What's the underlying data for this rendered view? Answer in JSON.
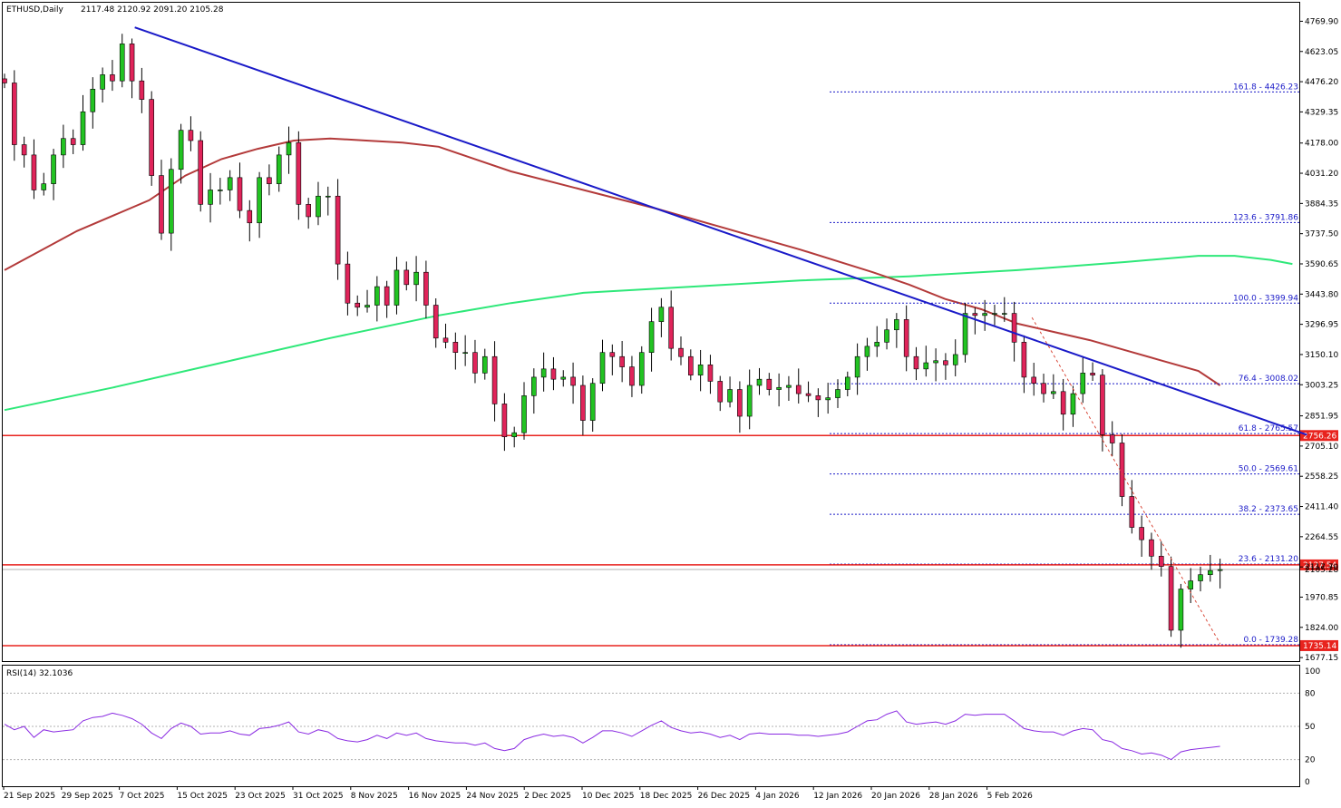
{
  "header": {
    "symbol": "ETHUSD,Daily",
    "ohlc": "2117.48 2120.92 2091.20 2105.28"
  },
  "colors": {
    "bull_candle": "#22c322",
    "bear_candle": "#e0245a",
    "trendline": "#1a1ac8",
    "ma_fast": "#b33a3a",
    "ma_slow": "#2ee879",
    "fib_lines": "#1a1ac8",
    "horizontal_levels": "#e8231e",
    "projection": "#d9493a",
    "rsi": "#8a2be2"
  },
  "chart_data": [
    {
      "type": "candlestick",
      "title": "ETHUSD,Daily",
      "price_axis_ticks": [
        "4769.90",
        "4623.05",
        "4476.20",
        "4329.35",
        "4178.00",
        "4031.20",
        "3884.35",
        "3737.50",
        "3590.65",
        "3443.80",
        "3296.95",
        "3150.10",
        "3003.25",
        "2851.95",
        "2705.10",
        "2558.25",
        "2411.40",
        "2264.55",
        "2117.70",
        "1970.85",
        "1824.00",
        "1677.15"
      ],
      "ylim": [
        1660,
        4860
      ],
      "date_ticks": [
        "21 Sep 2025",
        "29 Sep 2025",
        "7 Oct 2025",
        "15 Oct 2025",
        "23 Oct 2025",
        "31 Oct 2025",
        "8 Nov 2025",
        "16 Nov 2025",
        "24 Nov 2025",
        "2 Dec 2025",
        "10 Dec 2025",
        "18 Dec 2025",
        "26 Dec 2025",
        "4 Jan 2026",
        "12 Jan 2026",
        "20 Jan 2026",
        "28 Jan 2026",
        "5 Feb 2026"
      ],
      "close_series": [
        4470,
        4170,
        4120,
        3950,
        3980,
        4120,
        4200,
        4170,
        4330,
        4440,
        4510,
        4480,
        4660,
        4480,
        4390,
        4020,
        3740,
        4050,
        4240,
        4190,
        3880,
        3950,
        3950,
        4010,
        3850,
        3790,
        4010,
        3980,
        4120,
        4180,
        3880,
        3820,
        3920,
        3920,
        3590,
        3400,
        3380,
        3390,
        3480,
        3390,
        3560,
        3490,
        3550,
        3390,
        3230,
        3210,
        3160,
        3160,
        3060,
        3140,
        2910,
        2750,
        2770,
        2950,
        3040,
        3080,
        3030,
        3040,
        3000,
        2830,
        3010,
        3160,
        3140,
        3090,
        3000,
        3160,
        3310,
        3380,
        3180,
        3140,
        3050,
        3100,
        3020,
        2920,
        2980,
        2850,
        3000,
        3030,
        2980,
        2990,
        3000,
        2960,
        2950,
        2930,
        2940,
        2980,
        3040,
        3140,
        3190,
        3210,
        3270,
        3320,
        3140,
        3080,
        3110,
        3120,
        3100,
        3150,
        3350,
        3340,
        3350,
        3350,
        3350,
        3210,
        3040,
        3010,
        2960,
        2970,
        2860,
        2960,
        3060,
        3050,
        2760,
        2720,
        2460,
        2310,
        2250,
        2170,
        2120,
        1810,
        2010,
        2050,
        2080,
        2100,
        2105
      ],
      "candle_count": 125,
      "fib_retracement": [
        {
          "level": "161.8",
          "price": 4426.23,
          "label": "161.8 - 4426.23"
        },
        {
          "level": "123.6",
          "price": 3791.86,
          "label": "123.6 - 3791.86"
        },
        {
          "level": "100.0",
          "price": 3399.94,
          "label": "100.0 - 3399.94"
        },
        {
          "level": "76.4",
          "price": 3008.02,
          "label": "76.4 - 3008.02"
        },
        {
          "level": "61.8",
          "price": 2765.57,
          "label": "61.8 - 2765.57"
        },
        {
          "level": "50.0",
          "price": 2569.61,
          "label": "50.0 - 2569.61"
        },
        {
          "level": "38.2",
          "price": 2373.65,
          "label": "38.2 - 2373.65"
        },
        {
          "level": "23.6",
          "price": 2131.2,
          "label": "23.6 - 2131.20"
        },
        {
          "level": "0.0",
          "price": 1739.28,
          "label": "0.0 - 1739.28"
        }
      ],
      "horizontal_levels": [
        {
          "price": 2756.26,
          "label": "2756.26"
        },
        {
          "price": 2127.54,
          "label": "2127.54"
        },
        {
          "price": 1735.14,
          "label": "1735.14"
        }
      ],
      "current_price_label": "2105.28",
      "trendline": {
        "from": {
          "index": 18,
          "price": 4740
        },
        "to": {
          "index": 180,
          "price": 2760
        }
      },
      "moving_average_fast": [
        [
          0,
          3560
        ],
        [
          10,
          3750
        ],
        [
          20,
          3900
        ],
        [
          25,
          4020
        ],
        [
          30,
          4100
        ],
        [
          35,
          4150
        ],
        [
          40,
          4190
        ],
        [
          45,
          4200
        ],
        [
          50,
          4190
        ],
        [
          55,
          4180
        ],
        [
          60,
          4160
        ],
        [
          65,
          4100
        ],
        [
          70,
          4040
        ],
        [
          80,
          3950
        ],
        [
          90,
          3860
        ],
        [
          100,
          3760
        ],
        [
          110,
          3660
        ],
        [
          120,
          3550
        ],
        [
          125,
          3490
        ],
        [
          130,
          3420
        ],
        [
          135,
          3370
        ],
        [
          140,
          3300
        ],
        [
          145,
          3260
        ],
        [
          150,
          3220
        ],
        [
          155,
          3170
        ],
        [
          160,
          3120
        ],
        [
          165,
          3070
        ],
        [
          168,
          3000
        ]
      ],
      "moving_average_slow": [
        [
          0,
          2880
        ],
        [
          15,
          2990
        ],
        [
          30,
          3110
        ],
        [
          45,
          3230
        ],
        [
          60,
          3340
        ],
        [
          70,
          3400
        ],
        [
          80,
          3450
        ],
        [
          95,
          3480
        ],
        [
          110,
          3510
        ],
        [
          125,
          3530
        ],
        [
          140,
          3560
        ],
        [
          155,
          3600
        ],
        [
          165,
          3630
        ],
        [
          170,
          3630
        ],
        [
          175,
          3610
        ],
        [
          178,
          3590
        ]
      ],
      "projection_line": {
        "from": {
          "index": 142,
          "price": 3330
        },
        "to": {
          "index": 168,
          "price": 1745
        }
      },
      "rsi": {
        "label": "RSI(14) 32.1036",
        "axis_ticks": [
          "100",
          "80",
          "50",
          "20",
          "0"
        ],
        "levels": [
          80,
          50,
          20
        ],
        "values": [
          52,
          47,
          50,
          40,
          47,
          45,
          46,
          47,
          55,
          58,
          59,
          62,
          60,
          57,
          52,
          44,
          39,
          48,
          53,
          50,
          43,
          44,
          44,
          46,
          43,
          42,
          48,
          49,
          51,
          54,
          45,
          43,
          47,
          45,
          39,
          37,
          36,
          38,
          42,
          39,
          44,
          42,
          44,
          39,
          37,
          36,
          35,
          35,
          33,
          35,
          30,
          28,
          30,
          38,
          41,
          43,
          41,
          42,
          40,
          35,
          40,
          46,
          46,
          44,
          41,
          46,
          51,
          55,
          49,
          46,
          44,
          45,
          43,
          40,
          42,
          38,
          43,
          44,
          43,
          43,
          43,
          42,
          42,
          41,
          42,
          43,
          45,
          50,
          55,
          56,
          61,
          64,
          54,
          52,
          53,
          54,
          52,
          55,
          61,
          60,
          61,
          61,
          61,
          55,
          48,
          46,
          45,
          45,
          42,
          46,
          48,
          47,
          38,
          36,
          30,
          28,
          25,
          26,
          24,
          20,
          27,
          29,
          30,
          31,
          32
        ]
      }
    }
  ]
}
